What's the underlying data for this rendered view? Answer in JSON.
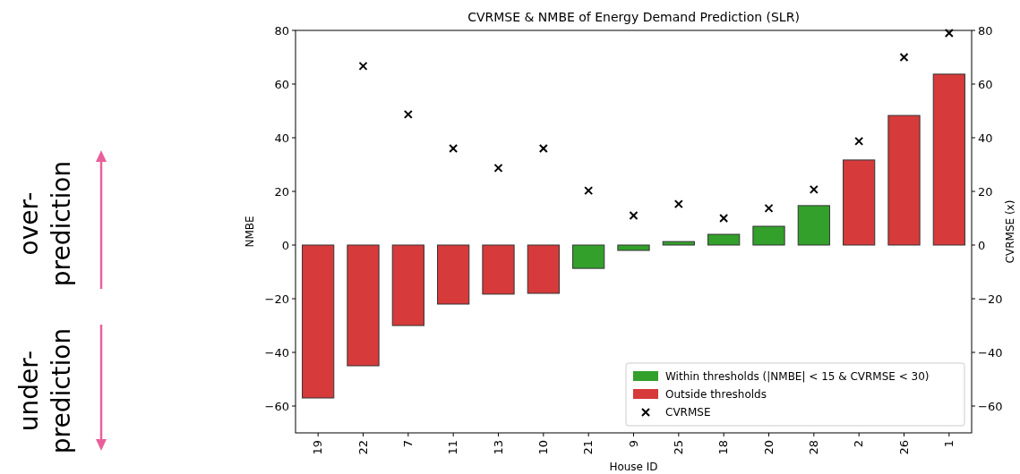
{
  "chart_data": {
    "type": "bar",
    "title": "CVRMSE & NMBE of Energy Demand Prediction (SLR)",
    "xlabel": "House ID",
    "ylabel": "NMBE",
    "y2label": "CVRMSE (x)",
    "categories": [
      "19",
      "22",
      "7",
      "11",
      "13",
      "10",
      "21",
      "9",
      "25",
      "18",
      "20",
      "28",
      "2",
      "26",
      "1"
    ],
    "series": [
      {
        "name": "Within thresholds (|NMBE| < 15 & CVRMSE < 30)",
        "color": "#33a02c",
        "values": [
          null,
          null,
          null,
          null,
          null,
          null,
          -8.7,
          -2,
          1.3,
          4,
          7,
          14.7,
          null,
          null,
          null
        ]
      },
      {
        "name": "Outside thresholds",
        "color": "#d63a3a",
        "values": [
          -57,
          -45,
          -30,
          -22,
          -18.3,
          -18,
          null,
          null,
          null,
          null,
          null,
          null,
          31.7,
          48.3,
          63.7
        ]
      },
      {
        "name": "CVRMSE",
        "type": "scatter",
        "axis": "y2",
        "marker": "cross",
        "color": "#000000",
        "values": [
          null,
          66.7,
          48.7,
          36,
          28.7,
          36,
          20.3,
          11,
          15.3,
          10,
          13.7,
          20.7,
          38.7,
          70,
          79
        ]
      }
    ],
    "ylim": [
      -70,
      80
    ],
    "yticks": [
      -60,
      -40,
      -20,
      0,
      20,
      40,
      60,
      80
    ],
    "y2lim": [
      -70,
      80
    ],
    "y2ticks": [
      -60,
      -40,
      -20,
      0,
      20,
      40,
      60,
      80
    ],
    "legend": "bottom right",
    "grid": false,
    "annotations": [
      "over-\nprediction",
      "under-\nprediction"
    ]
  }
}
